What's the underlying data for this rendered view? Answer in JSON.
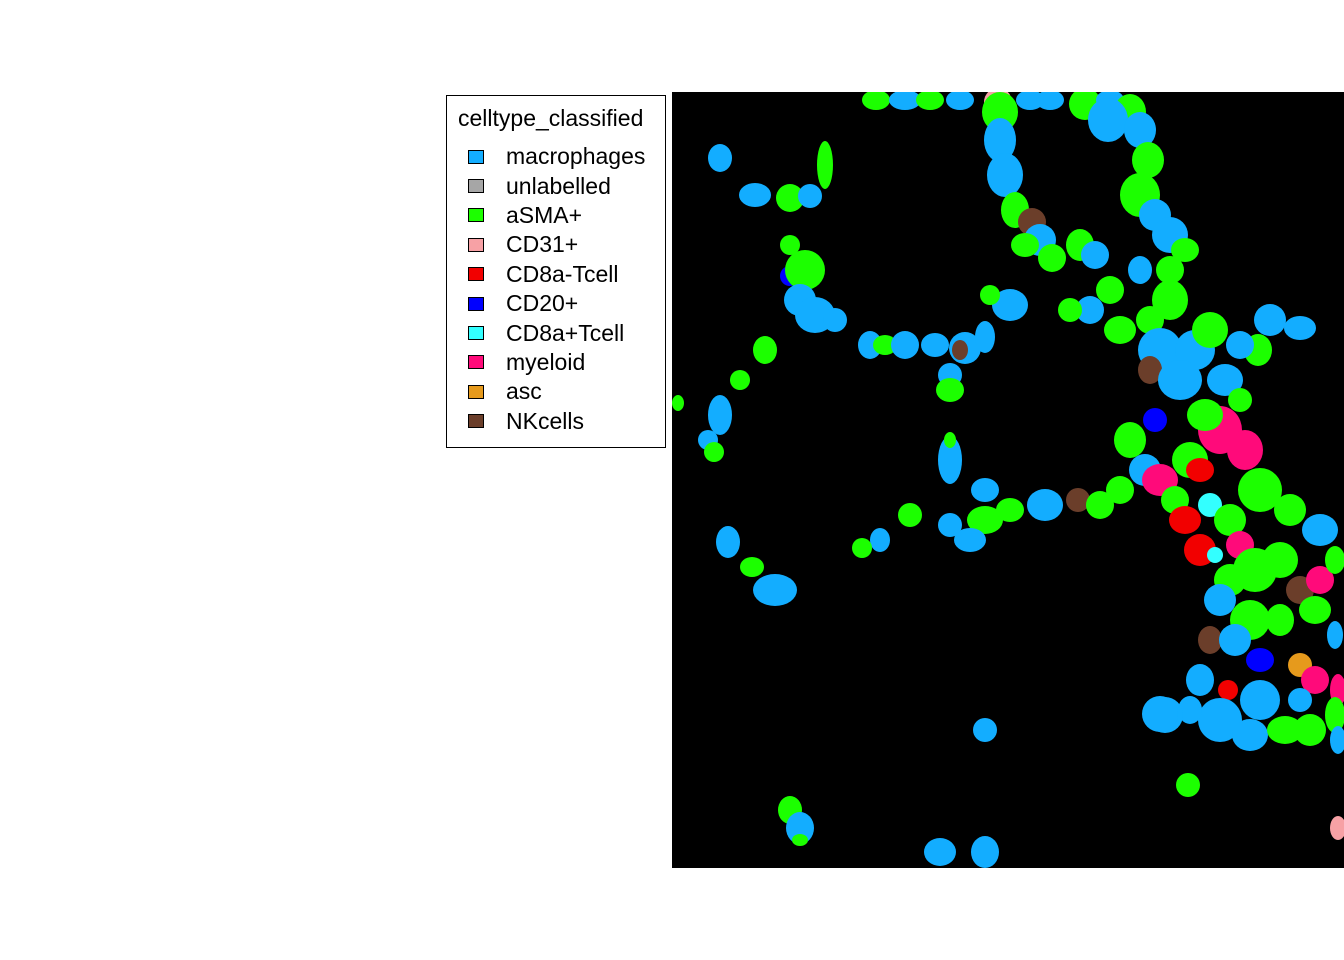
{
  "legend": {
    "title": "celltype_classified",
    "items": [
      {
        "label": "macrophages",
        "color": "#13ADFF"
      },
      {
        "label": "unlabelled",
        "color": "#A6A6A6"
      },
      {
        "label": "aSMA+",
        "color": "#1CFF00"
      },
      {
        "label": "CD31+",
        "color": "#F7A1A5"
      },
      {
        "label": "CD8a-Tcell",
        "color": "#F20000"
      },
      {
        "label": "CD20+",
        "color": "#0000FF"
      },
      {
        "label": "CD8a+Tcell",
        "color": "#33FFFF"
      },
      {
        "label": "myeloid",
        "color": "#FF0A7A"
      },
      {
        "label": "asc",
        "color": "#E69A1C"
      },
      {
        "label": "NKcells",
        "color": "#6B3E2A"
      }
    ]
  },
  "image": {
    "background_color": "#000000"
  }
}
